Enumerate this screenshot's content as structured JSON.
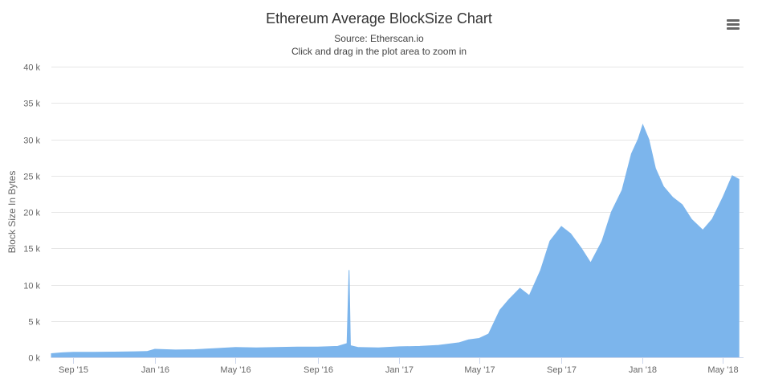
{
  "toolbar": {
    "menu_icon": "hamburger-menu-icon"
  },
  "chart_data": {
    "type": "area",
    "title": "Ethereum Average BlockSize Chart",
    "subtitle": "Source: Etherscan.io",
    "instruction": "Click and drag in the plot area to zoom in",
    "xlabel": "",
    "ylabel": "Block Size In Bytes",
    "ylim": [
      0,
      40000
    ],
    "xlim": [
      "2015-07-30",
      "2018-06-01"
    ],
    "y_ticks": [
      0,
      5000,
      10000,
      15000,
      20000,
      25000,
      30000,
      35000,
      40000
    ],
    "y_tick_labels": [
      "0 k",
      "5 k",
      "10 k",
      "15 k",
      "20 k",
      "25 k",
      "30 k",
      "35 k",
      "40 k"
    ],
    "x_ticks": [
      "2015-09-01",
      "2016-01-01",
      "2016-05-01",
      "2016-09-01",
      "2017-01-01",
      "2017-05-01",
      "2017-09-01",
      "2018-01-01",
      "2018-05-01"
    ],
    "x_tick_labels": [
      "Sep '15",
      "Jan '16",
      "May '16",
      "Sep '16",
      "Jan '17",
      "May '17",
      "Sep '17",
      "Jan '18",
      "May '18"
    ],
    "grid": true,
    "legend": "none",
    "color": "#7cb5ec",
    "series": [
      {
        "x": [
          "2015-07-30",
          "2015-08-15",
          "2015-09-01",
          "2015-10-01",
          "2015-11-01",
          "2015-12-01",
          "2015-12-20",
          "2016-01-01",
          "2016-02-01",
          "2016-03-01",
          "2016-04-01",
          "2016-05-01",
          "2016-06-01",
          "2016-07-01",
          "2016-08-01",
          "2016-09-01",
          "2016-10-01",
          "2016-10-15",
          "2016-10-18",
          "2016-10-20",
          "2016-11-01",
          "2016-12-01",
          "2017-01-01",
          "2017-02-01",
          "2017-03-01",
          "2017-04-01",
          "2017-04-15",
          "2017-05-01",
          "2017-05-15",
          "2017-06-01",
          "2017-06-15",
          "2017-07-01",
          "2017-07-15",
          "2017-08-01",
          "2017-08-15",
          "2017-09-01",
          "2017-09-15",
          "2017-10-01",
          "2017-10-15",
          "2017-11-01",
          "2017-11-15",
          "2017-12-01",
          "2017-12-15",
          "2017-12-25",
          "2018-01-01",
          "2018-01-10",
          "2018-01-20",
          "2018-02-01",
          "2018-02-15",
          "2018-03-01",
          "2018-03-15",
          "2018-04-01",
          "2018-04-15",
          "2018-05-01",
          "2018-05-15",
          "2018-05-25"
        ],
        "y": [
          500,
          620,
          700,
          700,
          720,
          760,
          800,
          1100,
          1000,
          1050,
          1200,
          1350,
          1300,
          1350,
          1400,
          1400,
          1500,
          1900,
          12000,
          1600,
          1350,
          1300,
          1450,
          1500,
          1650,
          2000,
          2400,
          2600,
          3200,
          6500,
          8000,
          9500,
          8500,
          12000,
          16000,
          18000,
          17000,
          15000,
          13000,
          16000,
          20000,
          23000,
          28000,
          30000,
          32000,
          30000,
          26000,
          23500,
          22000,
          21000,
          19000,
          17500,
          19000,
          22000,
          25000,
          24500
        ]
      }
    ]
  }
}
